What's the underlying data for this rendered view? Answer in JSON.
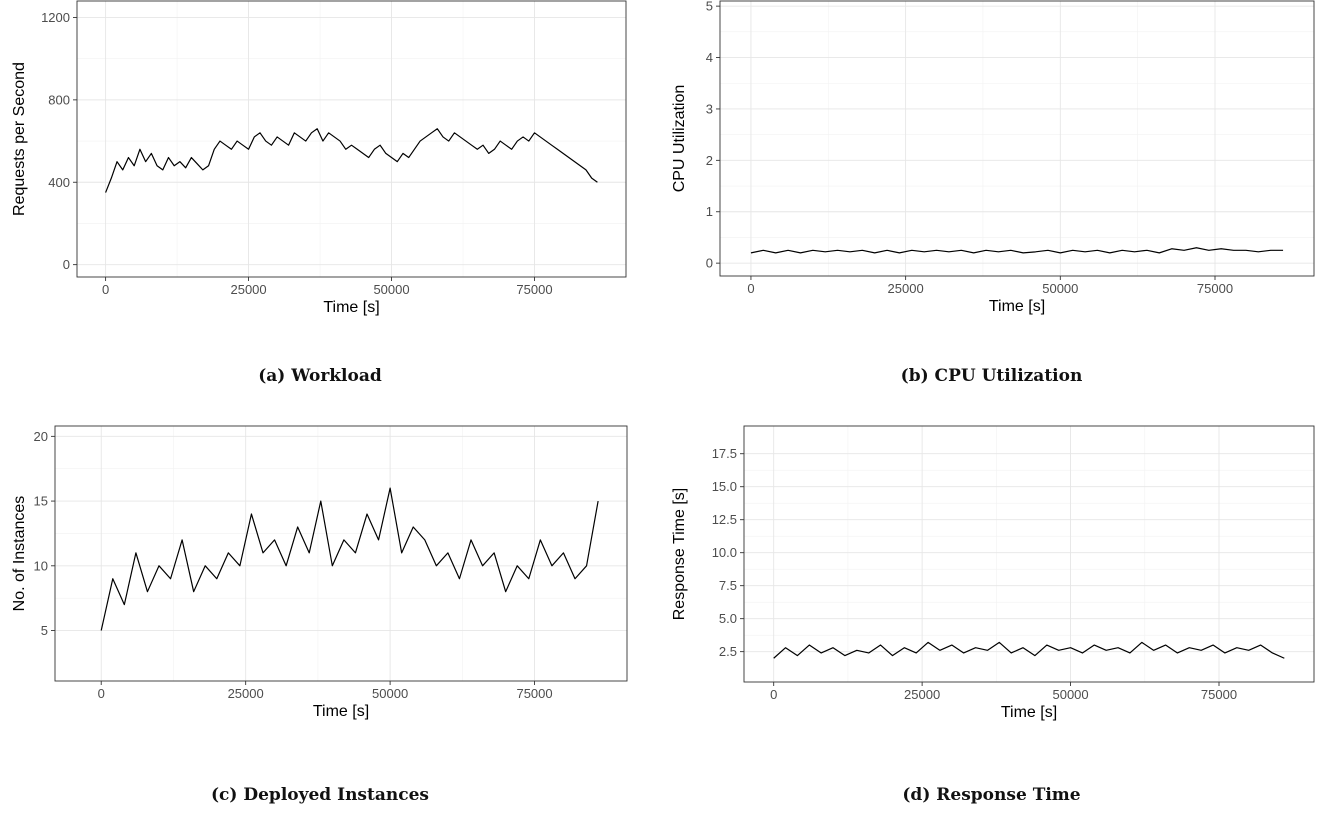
{
  "charts": [
    {
      "type": "line",
      "caption": "(a) Workload",
      "xlabel": "Time [s]",
      "ylabel": "Requests per Second",
      "xlim": [
        -5000,
        91000
      ],
      "ylim": [
        -60,
        1280
      ],
      "xticks": [
        0,
        25000,
        50000,
        75000
      ],
      "xtick_labels": [
        "0",
        "25000",
        "50000",
        "75000"
      ],
      "yticks": [
        0,
        400,
        800,
        1200
      ],
      "ytick_labels": [
        "0",
        "400",
        "800",
        "1200"
      ],
      "grid": true,
      "x": [
        0,
        1000,
        2000,
        3000,
        4000,
        5000,
        6000,
        7000,
        8000,
        9000,
        10000,
        11000,
        12000,
        13000,
        14000,
        15000,
        16000,
        17000,
        18000,
        19000,
        20000,
        21000,
        22000,
        23000,
        24000,
        25000,
        26000,
        27000,
        28000,
        29000,
        30000,
        31000,
        32000,
        33000,
        34000,
        35000,
        36000,
        37000,
        38000,
        39000,
        40000,
        41000,
        42000,
        43000,
        44000,
        45000,
        46000,
        47000,
        48000,
        49000,
        50000,
        51000,
        52000,
        53000,
        54000,
        55000,
        56000,
        57000,
        58000,
        59000,
        60000,
        61000,
        62000,
        63000,
        64000,
        65000,
        66000,
        67000,
        68000,
        69000,
        70000,
        71000,
        72000,
        73000,
        74000,
        75000,
        76000,
        77000,
        78000,
        79000,
        80000,
        81000,
        82000,
        83000,
        84000,
        85000,
        86000
      ],
      "series": [
        {
          "values": [
            350,
            420,
            500,
            460,
            520,
            480,
            560,
            500,
            540,
            480,
            460,
            520,
            480,
            500,
            470,
            520,
            490,
            460,
            480,
            560,
            600,
            580,
            560,
            600,
            580,
            560,
            620,
            640,
            600,
            580,
            620,
            600,
            580,
            640,
            620,
            600,
            640,
            660,
            600,
            640,
            620,
            600,
            560,
            580,
            560,
            540,
            520,
            560,
            580,
            540,
            520,
            500,
            540,
            520,
            560,
            600,
            620,
            640,
            660,
            620,
            600,
            640,
            620,
            600,
            580,
            560,
            580,
            540,
            560,
            600,
            580,
            560,
            600,
            620,
            600,
            640,
            620,
            600,
            580,
            560,
            540,
            520,
            500,
            480,
            460,
            420,
            400
          ]
        }
      ]
    },
    {
      "type": "line",
      "caption": "(b) CPU Utilization",
      "xlabel": "Time [s]",
      "ylabel": "CPU Utilization",
      "xlim": [
        -5000,
        91000
      ],
      "ylim": [
        -0.25,
        5.1
      ],
      "xticks": [
        0,
        25000,
        50000,
        75000
      ],
      "xtick_labels": [
        "0",
        "25000",
        "50000",
        "75000"
      ],
      "yticks": [
        0,
        1,
        2,
        3,
        4,
        5
      ],
      "ytick_labels": [
        "0",
        "1",
        "2",
        "3",
        "4",
        "5"
      ],
      "grid": true,
      "x": [
        0,
        2000,
        4000,
        6000,
        8000,
        10000,
        12000,
        14000,
        16000,
        18000,
        20000,
        22000,
        24000,
        26000,
        28000,
        30000,
        32000,
        34000,
        36000,
        38000,
        40000,
        42000,
        44000,
        46000,
        48000,
        50000,
        52000,
        54000,
        56000,
        58000,
        60000,
        62000,
        64000,
        66000,
        68000,
        70000,
        72000,
        74000,
        76000,
        78000,
        80000,
        82000,
        84000,
        86000
      ],
      "series": [
        {
          "values": [
            0.2,
            0.25,
            0.2,
            0.25,
            0.2,
            0.25,
            0.22,
            0.25,
            0.22,
            0.25,
            0.2,
            0.25,
            0.2,
            0.25,
            0.22,
            0.25,
            0.22,
            0.25,
            0.2,
            0.25,
            0.22,
            0.25,
            0.2,
            0.22,
            0.25,
            0.2,
            0.25,
            0.22,
            0.25,
            0.2,
            0.25,
            0.22,
            0.25,
            0.2,
            0.28,
            0.25,
            0.3,
            0.25,
            0.28,
            0.25,
            0.25,
            0.22,
            0.25,
            0.25
          ]
        }
      ]
    },
    {
      "type": "line",
      "caption": "(c) Deployed Instances",
      "xlabel": "Time [s]",
      "ylabel": "No. of Instances",
      "xlim": [
        -8000,
        91000
      ],
      "ylim": [
        1.1,
        20.8
      ],
      "xticks": [
        0,
        25000,
        50000,
        75000
      ],
      "xtick_labels": [
        "0",
        "25000",
        "50000",
        "75000"
      ],
      "yticks": [
        5,
        10,
        15,
        20
      ],
      "ytick_labels": [
        "5",
        "10",
        "15",
        "20"
      ],
      "grid": true,
      "x": [
        0,
        2000,
        4000,
        6000,
        8000,
        10000,
        12000,
        14000,
        16000,
        18000,
        20000,
        22000,
        24000,
        26000,
        28000,
        30000,
        32000,
        34000,
        36000,
        38000,
        40000,
        42000,
        44000,
        46000,
        48000,
        50000,
        52000,
        54000,
        56000,
        58000,
        60000,
        62000,
        64000,
        66000,
        68000,
        70000,
        72000,
        74000,
        76000,
        78000,
        80000,
        82000,
        84000,
        86000
      ],
      "series": [
        {
          "values": [
            5,
            9,
            7,
            11,
            8,
            10,
            9,
            12,
            8,
            10,
            9,
            11,
            10,
            14,
            11,
            12,
            10,
            13,
            11,
            15,
            10,
            12,
            11,
            14,
            12,
            16,
            11,
            13,
            12,
            10,
            11,
            9,
            12,
            10,
            11,
            8,
            10,
            9,
            12,
            10,
            11,
            9,
            10,
            15
          ]
        }
      ]
    },
    {
      "type": "line",
      "caption": "(d) Response Time",
      "xlabel": "Time [s]",
      "ylabel": "Response Time [s]",
      "xlim": [
        -5000,
        91000
      ],
      "ylim": [
        0.2,
        19.6
      ],
      "xticks": [
        0,
        25000,
        50000,
        75000
      ],
      "xtick_labels": [
        "0",
        "25000",
        "50000",
        "75000"
      ],
      "yticks": [
        2.5,
        5,
        7.5,
        10,
        12.5,
        15,
        17.5
      ],
      "ytick_labels": [
        "2.5",
        "5.0",
        "7.5",
        "10.0",
        "12.5",
        "15.0",
        "17.5"
      ],
      "grid": true,
      "x": [
        0,
        2000,
        4000,
        6000,
        8000,
        10000,
        12000,
        14000,
        16000,
        18000,
        20000,
        22000,
        24000,
        26000,
        28000,
        30000,
        32000,
        34000,
        36000,
        38000,
        40000,
        42000,
        44000,
        46000,
        48000,
        50000,
        52000,
        54000,
        56000,
        58000,
        60000,
        62000,
        64000,
        66000,
        68000,
        70000,
        72000,
        74000,
        76000,
        78000,
        80000,
        82000,
        84000,
        86000
      ],
      "series": [
        {
          "values": [
            2.0,
            2.8,
            2.2,
            3.0,
            2.4,
            2.8,
            2.2,
            2.6,
            2.4,
            3.0,
            2.2,
            2.8,
            2.4,
            3.2,
            2.6,
            3.0,
            2.4,
            2.8,
            2.6,
            3.2,
            2.4,
            2.8,
            2.2,
            3.0,
            2.6,
            2.8,
            2.4,
            3.0,
            2.6,
            2.8,
            2.4,
            3.2,
            2.6,
            3.0,
            2.4,
            2.8,
            2.6,
            3.0,
            2.4,
            2.8,
            2.6,
            3.0,
            2.4,
            2.0
          ]
        }
      ]
    }
  ]
}
